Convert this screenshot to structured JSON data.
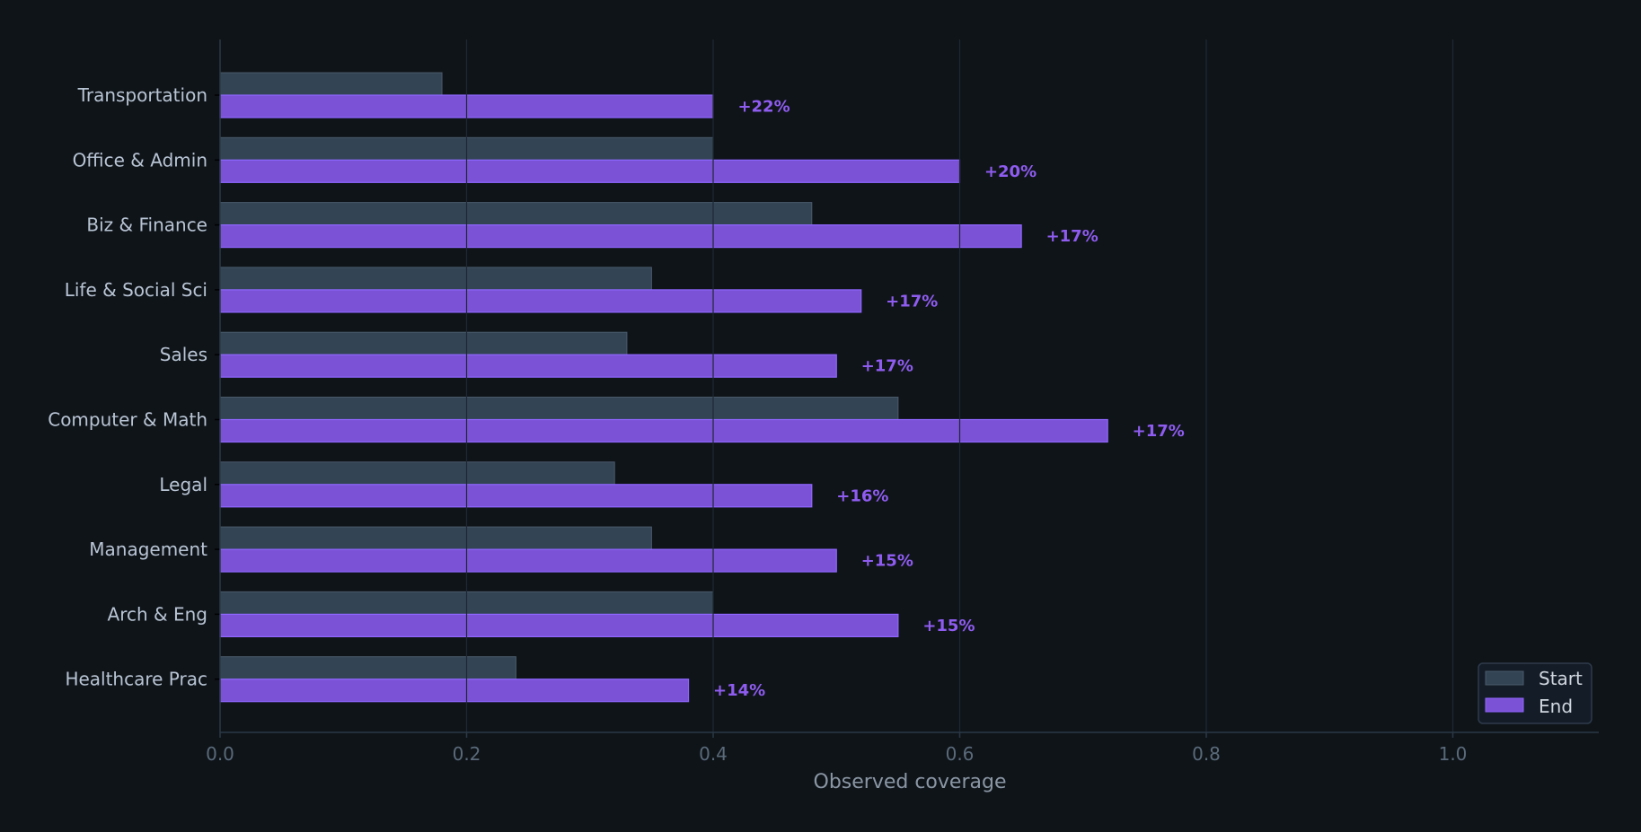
{
  "chart_data": {
    "type": "bar",
    "orientation": "horizontal",
    "categories": [
      "Transportation",
      "Office & Admin",
      "Biz & Finance",
      "Life & Social Sci",
      "Sales",
      "Computer & Math",
      "Legal",
      "Management",
      "Arch & Eng",
      "Healthcare Prac"
    ],
    "series": [
      {
        "name": "Start",
        "values": [
          0.18,
          0.4,
          0.48,
          0.35,
          0.33,
          0.55,
          0.32,
          0.35,
          0.4,
          0.24
        ],
        "color": "#334455"
      },
      {
        "name": "End",
        "values": [
          0.4,
          0.6,
          0.65,
          0.52,
          0.5,
          0.72,
          0.48,
          0.5,
          0.55,
          0.38
        ],
        "color": "#7b52d6"
      }
    ],
    "annotations": [
      "+22%",
      "+20%",
      "+17%",
      "+17%",
      "+17%",
      "+17%",
      "+16%",
      "+15%",
      "+15%",
      "+14%"
    ],
    "xlabel": "Observed coverage",
    "ylabel": "",
    "title": "",
    "xlim": [
      0,
      1.12
    ],
    "xticks": [
      "0.0",
      "0.2",
      "0.4",
      "0.6",
      "0.8",
      "1.0"
    ],
    "grid": "vertical",
    "legend": "bottom-right",
    "colors": {
      "background": "#0f1419",
      "annotation": "#8f5cf0",
      "label": "#b8c4d4",
      "tick": "#5a6a7a"
    }
  }
}
